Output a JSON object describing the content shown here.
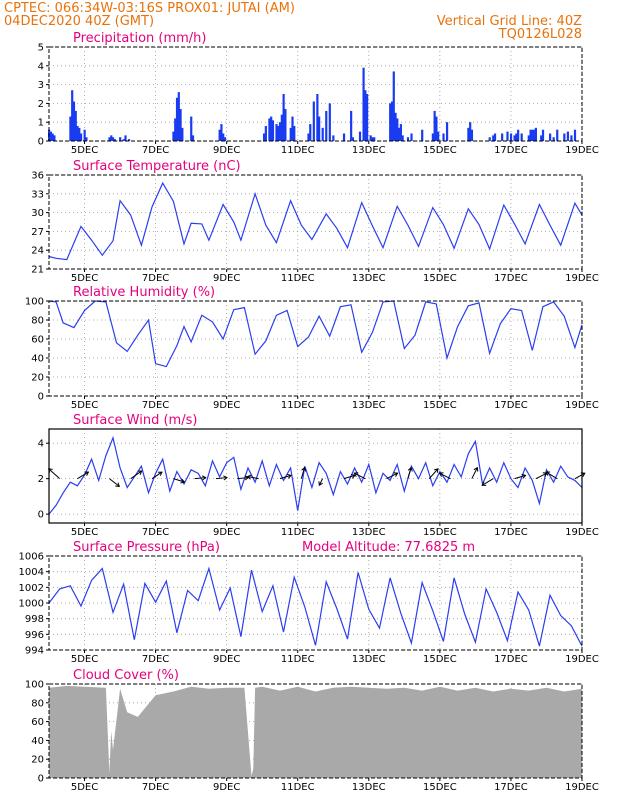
{
  "header": {
    "line1_left": "CPTEC:   066:34W-03:16S   PROX01: JUTAI (AM)",
    "line2_left": "04DEC2020 40Z (GMT)",
    "line2_right": "Vertical Grid Line: 40Z",
    "line3_right": "TQ0126L028"
  },
  "colors": {
    "header": "#e8730c",
    "panel_title": "#e6007e",
    "series": "#2b3ef0",
    "cloud": "#a9a9a9"
  },
  "chart_data": [
    {
      "id": "precip",
      "type": "bar",
      "title": "Precipitation (mm/h)",
      "ylim": [
        0,
        5
      ],
      "yticks": [
        0,
        1,
        2,
        3,
        4,
        5
      ],
      "xlim": [
        4,
        19
      ],
      "xtick_labels": [
        "5DEC",
        "7DEC",
        "9DEC",
        "11DEC",
        "13DEC",
        "15DEC",
        "17DEC",
        "19DEC"
      ],
      "xtick_days": [
        5,
        7,
        9,
        11,
        13,
        15,
        17,
        19
      ],
      "x_day": [
        4.0,
        4.05,
        4.1,
        4.15,
        4.6,
        4.65,
        4.7,
        4.75,
        4.8,
        4.85,
        4.9,
        5.0,
        5.05,
        5.7,
        5.75,
        5.8,
        5.85,
        6.0,
        6.1,
        6.15,
        6.25,
        7.5,
        7.55,
        7.6,
        7.65,
        7.7,
        7.75,
        8.0,
        8.05,
        8.8,
        8.85,
        8.9,
        8.95,
        10.05,
        10.1,
        10.2,
        10.25,
        10.3,
        10.4,
        10.45,
        10.5,
        10.55,
        10.6,
        10.65,
        10.8,
        10.85,
        10.9,
        11.3,
        11.35,
        11.45,
        11.55,
        11.6,
        11.7,
        11.8,
        11.9,
        12.0,
        12.3,
        12.5,
        12.55,
        12.75,
        12.85,
        12.9,
        12.95,
        13.05,
        13.1,
        13.15,
        13.6,
        13.65,
        13.7,
        13.75,
        13.8,
        13.85,
        13.9,
        13.95,
        14.1,
        14.2,
        14.5,
        14.8,
        14.85,
        14.9,
        14.95,
        15.1,
        15.2,
        15.8,
        15.85,
        15.9,
        16.4,
        16.5,
        16.55,
        16.75,
        16.9,
        17.0,
        17.1,
        17.15,
        17.2,
        17.3,
        17.5,
        17.55,
        17.6,
        17.65,
        17.7,
        17.85,
        17.9,
        18.1,
        18.2,
        18.3,
        18.5,
        18.6,
        18.7,
        18.8
      ],
      "values": [
        0.6,
        0.5,
        0.4,
        0.3,
        1.3,
        2.7,
        2.1,
        1.6,
        0.8,
        0.7,
        0.4,
        0.6,
        0.2,
        0.2,
        0.3,
        0.2,
        0.1,
        0.2,
        0.1,
        0.3,
        0.1,
        0.5,
        1.2,
        2.3,
        2.6,
        1.7,
        0.7,
        1.3,
        0.3,
        0.6,
        0.9,
        0.4,
        0.2,
        0.4,
        0.8,
        1.2,
        1.3,
        1.1,
        0.9,
        0.8,
        1.0,
        1.4,
        2.5,
        1.7,
        0.7,
        1.3,
        0.8,
        0.4,
        0.9,
        2.1,
        2.5,
        1.3,
        0.7,
        1.6,
        2.0,
        0.3,
        0.4,
        1.6,
        0.2,
        0.5,
        3.9,
        2.7,
        2.5,
        0.3,
        0.2,
        0.2,
        2.0,
        2.1,
        3.7,
        1.5,
        1.2,
        0.7,
        0.9,
        0.3,
        0.2,
        0.4,
        0.6,
        0.4,
        1.6,
        1.3,
        0.5,
        0.4,
        1.0,
        0.7,
        1.0,
        0.6,
        0.2,
        0.3,
        0.4,
        0.4,
        0.5,
        0.4,
        0.3,
        0.4,
        0.6,
        0.4,
        0.3,
        0.6,
        0.6,
        0.6,
        0.7,
        0.3,
        0.6,
        0.4,
        0.2,
        0.6,
        0.4,
        0.5,
        0.3,
        0.6
      ]
    },
    {
      "id": "temp",
      "type": "line",
      "title": "Surface Temperature (nC)",
      "ylim": [
        21,
        36
      ],
      "yticks": [
        21,
        24,
        27,
        30,
        33,
        36
      ],
      "xlim": [
        4,
        19
      ],
      "xtick_labels": [
        "5DEC",
        "7DEC",
        "9DEC",
        "11DEC",
        "13DEC",
        "15DEC",
        "17DEC",
        "19DEC"
      ],
      "xtick_days": [
        5,
        7,
        9,
        11,
        13,
        15,
        17,
        19
      ],
      "x_day": [
        4.0,
        4.2,
        4.5,
        4.9,
        5.2,
        5.5,
        5.8,
        6.0,
        6.3,
        6.6,
        6.9,
        7.2,
        7.5,
        7.8,
        8.0,
        8.3,
        8.5,
        8.9,
        9.2,
        9.4,
        9.8,
        10.1,
        10.4,
        10.8,
        11.1,
        11.4,
        11.8,
        12.1,
        12.4,
        12.8,
        13.1,
        13.4,
        13.8,
        14.1,
        14.4,
        14.8,
        15.1,
        15.4,
        15.8,
        16.1,
        16.4,
        16.8,
        17.1,
        17.4,
        17.8,
        18.1,
        18.4,
        18.8,
        19.0
      ],
      "values": [
        23.0,
        22.7,
        22.5,
        27.8,
        25.6,
        23.2,
        25.5,
        31.9,
        29.6,
        24.8,
        30.9,
        34.7,
        31.8,
        25.0,
        28.3,
        28.2,
        25.6,
        31.3,
        28.5,
        25.6,
        33.0,
        28.0,
        25.2,
        31.9,
        28.0,
        25.7,
        29.8,
        27.5,
        24.4,
        31.6,
        27.9,
        24.4,
        31.0,
        28.0,
        24.6,
        30.8,
        28.1,
        24.3,
        30.6,
        28.1,
        24.2,
        31.2,
        28.2,
        25.0,
        31.3,
        28.0,
        24.8,
        31.5,
        29.6
      ]
    },
    {
      "id": "rh",
      "type": "line",
      "title": "Relative Humidity (%)",
      "ylim": [
        0,
        100
      ],
      "yticks": [
        0,
        20,
        40,
        60,
        80,
        100
      ],
      "xlim": [
        4,
        19
      ],
      "xtick_labels": [
        "5DEC",
        "7DEC",
        "9DEC",
        "11DEC",
        "13DEC",
        "15DEC",
        "17DEC",
        "19DEC"
      ],
      "xtick_days": [
        5,
        7,
        9,
        11,
        13,
        15,
        17,
        19
      ],
      "x_day": [
        4.0,
        4.2,
        4.4,
        4.7,
        5.0,
        5.3,
        5.6,
        5.9,
        6.2,
        6.5,
        6.8,
        7.0,
        7.3,
        7.6,
        7.8,
        8.0,
        8.3,
        8.6,
        8.9,
        9.2,
        9.5,
        9.8,
        10.1,
        10.4,
        10.7,
        11.0,
        11.3,
        11.6,
        11.9,
        12.2,
        12.5,
        12.8,
        13.1,
        13.4,
        13.7,
        14.0,
        14.3,
        14.6,
        14.9,
        15.2,
        15.5,
        15.8,
        16.1,
        16.4,
        16.7,
        17.0,
        17.3,
        17.6,
        17.9,
        18.2,
        18.5,
        18.8,
        19.0
      ],
      "values": [
        100,
        99,
        77,
        72,
        90,
        100,
        99,
        56,
        47,
        64,
        80,
        34,
        31,
        53,
        73,
        57,
        85,
        78,
        60,
        91,
        93,
        44,
        58,
        85,
        90,
        52,
        62,
        84,
        63,
        94,
        96,
        46,
        67,
        99,
        100,
        50,
        64,
        99,
        97,
        40,
        73,
        95,
        98,
        45,
        76,
        92,
        90,
        48,
        94,
        99,
        84,
        51,
        75
      ]
    },
    {
      "id": "wind",
      "type": "line",
      "title": "Surface Wind (m/s)",
      "ylim": [
        -0.5,
        4.8
      ],
      "yticks": [
        0,
        2,
        4
      ],
      "xlim": [
        4,
        19
      ],
      "xtick_labels": [
        "5DEC",
        "7DEC",
        "9DEC",
        "11DEC",
        "13DEC",
        "15DEC",
        "17DEC",
        "19DEC"
      ],
      "xtick_days": [
        5,
        7,
        9,
        11,
        13,
        15,
        17,
        19
      ],
      "x_day": [
        4.0,
        4.2,
        4.4,
        4.6,
        4.8,
        5.0,
        5.2,
        5.4,
        5.6,
        5.8,
        6.0,
        6.2,
        6.4,
        6.6,
        6.8,
        7.0,
        7.2,
        7.4,
        7.6,
        7.8,
        8.0,
        8.2,
        8.4,
        8.6,
        8.8,
        9.0,
        9.2,
        9.4,
        9.6,
        9.8,
        10.0,
        10.2,
        10.4,
        10.6,
        10.8,
        11.0,
        11.2,
        11.4,
        11.6,
        11.8,
        12.0,
        12.2,
        12.4,
        12.6,
        12.8,
        13.0,
        13.2,
        13.4,
        13.6,
        13.8,
        14.0,
        14.2,
        14.4,
        14.6,
        14.8,
        15.0,
        15.2,
        15.4,
        15.6,
        15.8,
        16.0,
        16.2,
        16.4,
        16.6,
        16.8,
        17.0,
        17.2,
        17.4,
        17.6,
        17.8,
        18.0,
        18.2,
        18.4,
        18.6,
        18.8,
        19.0
      ],
      "values": [
        0.0,
        0.5,
        1.2,
        1.8,
        1.6,
        2.2,
        3.1,
        1.9,
        3.3,
        4.3,
        2.6,
        1.5,
        2.1,
        2.7,
        1.2,
        2.3,
        3.1,
        1.3,
        2.4,
        1.7,
        2.5,
        2.3,
        1.6,
        3.0,
        2.1,
        2.9,
        3.2,
        1.4,
        2.6,
        1.8,
        3.0,
        1.6,
        2.8,
        1.9,
        2.6,
        0.2,
        2.7,
        1.5,
        2.9,
        2.3,
        1.1,
        2.4,
        1.7,
        2.6,
        1.8,
        2.8,
        1.2,
        2.3,
        1.9,
        2.8,
        1.3,
        2.7,
        2.0,
        2.9,
        1.6,
        2.4,
        1.8,
        2.8,
        2.1,
        3.4,
        4.1,
        1.7,
        2.6,
        1.8,
        2.9,
        2.0,
        1.5,
        2.6,
        1.9,
        0.6,
        2.5,
        1.8,
        2.7,
        2.1,
        1.9,
        1.5
      ],
      "vectors_day": [
        4.3,
        4.8,
        5.7,
        6.3,
        6.9,
        7.5,
        8.1,
        8.7,
        9.3,
        9.9,
        10.5,
        11.1,
        11.7,
        12.3,
        12.9,
        13.5,
        14.1,
        14.7,
        15.3,
        15.9,
        16.5,
        17.1,
        17.7,
        18.3,
        18.8
      ],
      "vectors_dx": [
        -1,
        1,
        0.9,
        1,
        0.9,
        1,
        1,
        1,
        1,
        -1,
        1,
        0.3,
        -0.3,
        1,
        -1,
        1,
        0.3,
        0.8,
        -1,
        0.5,
        -1,
        1,
        1,
        -1,
        0.9
      ],
      "vectors_dy": [
        0.9,
        0.6,
        -0.7,
        0.7,
        0.6,
        -0.3,
        0.1,
        0.1,
        0.1,
        0.2,
        0.3,
        1,
        -0.6,
        0.3,
        0.5,
        0.5,
        1,
        0.9,
        0.5,
        1,
        -0.6,
        0.3,
        0.5,
        0.6,
        0.5
      ]
    },
    {
      "id": "pressure",
      "type": "line",
      "title": "Surface Pressure (hPa)",
      "annotation": "Model Altitude: 77.6825 m",
      "ylim": [
        994,
        1006
      ],
      "yticks": [
        994,
        996,
        998,
        1000,
        1002,
        1004,
        1006
      ],
      "xlim": [
        4,
        19
      ],
      "xtick_labels": [
        "5DEC",
        "7DEC",
        "9DEC",
        "11DEC",
        "13DEC",
        "15DEC",
        "17DEC",
        "19DEC"
      ],
      "xtick_days": [
        5,
        7,
        9,
        11,
        13,
        15,
        17,
        19
      ],
      "x_day": [
        4.0,
        4.3,
        4.6,
        4.9,
        5.2,
        5.5,
        5.8,
        6.1,
        6.4,
        6.7,
        7.0,
        7.3,
        7.6,
        7.9,
        8.2,
        8.5,
        8.8,
        9.1,
        9.4,
        9.7,
        10.0,
        10.3,
        10.6,
        10.9,
        11.2,
        11.5,
        11.8,
        12.1,
        12.4,
        12.7,
        13.0,
        13.3,
        13.6,
        13.9,
        14.2,
        14.5,
        14.8,
        15.1,
        15.4,
        15.7,
        16.0,
        16.3,
        16.6,
        16.9,
        17.2,
        17.5,
        17.8,
        18.1,
        18.4,
        18.7,
        19.0
      ],
      "values": [
        1000.0,
        1001.8,
        1002.2,
        999.6,
        1002.9,
        1004.4,
        998.8,
        1002.4,
        995.3,
        1002.5,
        1000.1,
        1002.8,
        996.2,
        1001.6,
        1000.3,
        1004.4,
        999.1,
        1001.9,
        995.7,
        1004.2,
        998.9,
        1002.2,
        996.3,
        1003.3,
        999.5,
        994.6,
        1002.7,
        999.3,
        995.4,
        1003.9,
        999.2,
        996.8,
        1003.2,
        998.7,
        994.9,
        1002.6,
        999.0,
        995.1,
        1003.2,
        998.6,
        995.0,
        1001.8,
        998.8,
        995.2,
        1001.4,
        999.1,
        994.5,
        1001.0,
        998.4,
        997.1,
        994.5
      ]
    },
    {
      "id": "cloud",
      "type": "area",
      "title": "Cloud Cover (%)",
      "ylim": [
        0,
        100
      ],
      "yticks": [
        0,
        20,
        40,
        60,
        80,
        100
      ],
      "xlim": [
        4,
        19
      ],
      "xtick_labels": [
        "5DEC",
        "7DEC",
        "9DEC",
        "11DEC",
        "13DEC",
        "15DEC",
        "17DEC",
        "19DEC"
      ],
      "xtick_days": [
        5,
        7,
        9,
        11,
        13,
        15,
        17,
        19
      ],
      "x_day": [
        4.0,
        4.5,
        5.0,
        5.6,
        5.7,
        5.75,
        5.8,
        6.0,
        6.2,
        6.5,
        7.0,
        7.5,
        8.0,
        8.5,
        9.0,
        9.5,
        9.7,
        9.75,
        9.8,
        10.0,
        10.5,
        11.0,
        11.5,
        12.0,
        12.5,
        13.0,
        13.5,
        14.0,
        14.5,
        15.0,
        15.5,
        16.0,
        16.5,
        17.0,
        17.5,
        18.0,
        18.5,
        19.0
      ],
      "values": [
        96,
        98,
        97,
        96,
        5,
        50,
        30,
        95,
        70,
        65,
        88,
        92,
        97,
        95,
        96,
        96,
        2,
        10,
        96,
        97,
        93,
        97,
        92,
        96,
        97,
        96,
        95,
        96,
        93,
        97,
        93,
        96,
        92,
        95,
        93,
        96,
        92,
        95
      ]
    }
  ]
}
